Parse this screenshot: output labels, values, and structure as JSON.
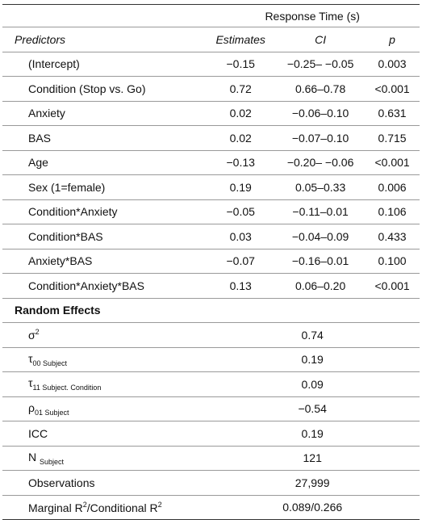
{
  "header": {
    "group_label": "Response Time (s)",
    "col_predictors": "Predictors",
    "col_estimates": "Estimates",
    "col_ci": "CI",
    "col_p": "p"
  },
  "fixed_rows": [
    {
      "predictor": "(Intercept)",
      "estimate": "−0.15",
      "ci": "−0.25– −0.05",
      "p": "0.003"
    },
    {
      "predictor": "Condition (Stop vs. Go)",
      "estimate": "0.72",
      "ci": "0.66–0.78",
      "p": "<0.001"
    },
    {
      "predictor": "Anxiety",
      "estimate": "0.02",
      "ci": "−0.06–0.10",
      "p": "0.631"
    },
    {
      "predictor": "BAS",
      "estimate": "0.02",
      "ci": "−0.07–0.10",
      "p": "0.715"
    },
    {
      "predictor": "Age",
      "estimate": "−0.13",
      "ci": "−0.20– −0.06",
      "p": "<0.001"
    },
    {
      "predictor": "Sex (1=female)",
      "estimate": "0.19",
      "ci": "0.05–0.33",
      "p": "0.006"
    },
    {
      "predictor": "Condition*Anxiety",
      "estimate": "−0.05",
      "ci": "−0.11–0.01",
      "p": "0.106"
    },
    {
      "predictor": "Condition*BAS",
      "estimate": "0.03",
      "ci": "−0.04–0.09",
      "p": "0.433"
    },
    {
      "predictor": "Anxiety*BAS",
      "estimate": "−0.07",
      "ci": "−0.16–0.01",
      "p": "0.100"
    },
    {
      "predictor": "Condition*Anxiety*BAS",
      "estimate": "0.13",
      "ci": "0.06–0.20",
      "p": "<0.001"
    }
  ],
  "random_effects": {
    "title": "Random Effects",
    "sigma2": {
      "symbol": "σ",
      "sup": "2",
      "value": "0.74"
    },
    "tau00": {
      "symbol": "τ",
      "sub": "00 Subject",
      "value": "0.19"
    },
    "tau11": {
      "symbol": "τ",
      "sub": "11 Subject. Condition",
      "value": "0.09"
    },
    "rho01": {
      "symbol": "ρ",
      "sub": "01 Subject",
      "value": "−0.54"
    },
    "icc": {
      "label": "ICC",
      "value": "0.19"
    },
    "n": {
      "label": "N",
      "sub": "Subject",
      "value": "121"
    }
  },
  "observations": {
    "label": "Observations",
    "value": "27,999"
  },
  "r2": {
    "label_a": "Marginal R",
    "sup_a": "2",
    "label_b": "/Conditional R",
    "sup_b": "2",
    "value": "0.089/0.266"
  }
}
